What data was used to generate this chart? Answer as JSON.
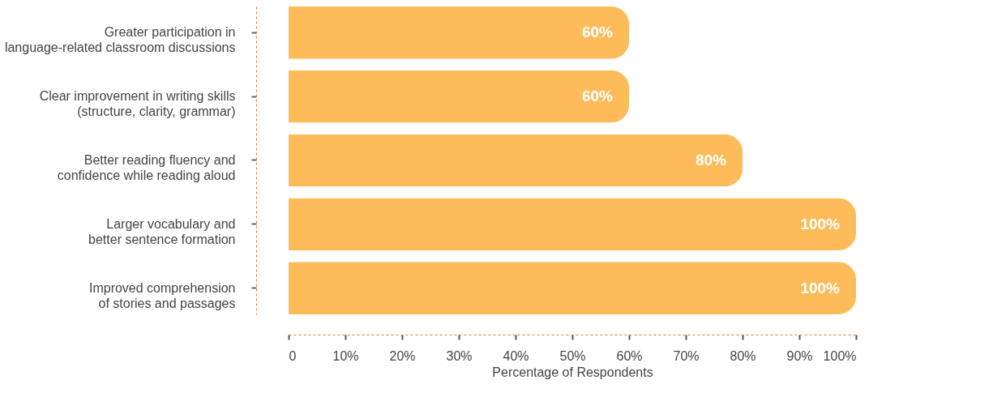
{
  "chart_data": {
    "type": "bar",
    "orientation": "horizontal",
    "xlabel": "Percentage of Respondents",
    "categories": [
      "Greater participation in language-related classroom discussions",
      "Clear improvement in writing skills (structure, clarity, grammar)",
      "Better reading fluency and confidence while reading aloud",
      "Larger vocabulary and better sentence formation",
      "Improved comprehension of stories and passages"
    ],
    "values": [
      60,
      60,
      80,
      100,
      100
    ],
    "value_labels": [
      "60%",
      "60%",
      "80%",
      "100%",
      "100%"
    ],
    "color": "#fdbb5a",
    "xlim": [
      0,
      100
    ],
    "xticks": [
      0,
      {
        "value": 10,
        "label": "10%"
      },
      {
        "value": 20,
        "label": "20%"
      },
      {
        "value": 30,
        "label": "30%"
      },
      {
        "value": 40,
        "label": "40%"
      },
      {
        "value": 50,
        "label": "50%"
      },
      {
        "value": 60,
        "label": "60%"
      },
      {
        "value": 70,
        "label": "70%"
      },
      {
        "value": 80,
        "label": "80%"
      },
      {
        "value": 90,
        "label": "90%"
      },
      {
        "value": 100,
        "label": "100%"
      }
    ],
    "grid": false
  }
}
